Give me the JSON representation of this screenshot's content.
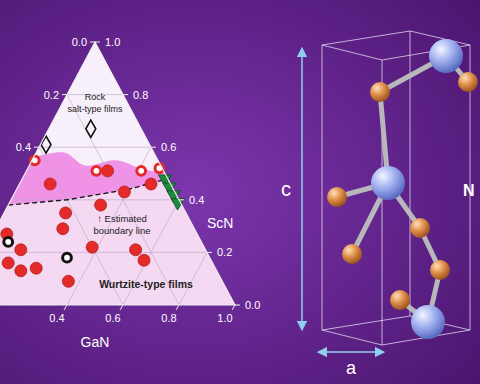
{
  "chart_data": {
    "type": "ternary",
    "grid": true,
    "axes": {
      "right": {
        "label": "ScN",
        "lim": [
          0,
          1
        ],
        "ticks": [
          {
            "value": 0,
            "label": "0.0"
          },
          0.2,
          0.4,
          0.6,
          0.8,
          {
            "value": 1,
            "label": "1.0"
          }
        ]
      },
      "bottom": {
        "label": "GaN",
        "lim": [
          0,
          1
        ],
        "ticks": [
          0.4,
          0.6,
          0.8,
          {
            "value": 1,
            "label": "1.0"
          }
        ]
      },
      "left": {
        "lim": [
          0,
          1
        ],
        "ticks": [
          {
            "value": 0,
            "label": "0.0"
          },
          0.2,
          0.4
        ]
      }
    },
    "series": [
      {
        "marker": "circle",
        "color": "#e52a2a",
        "scn": [
          0.46,
          0.51,
          0.43,
          0.46,
          0.35,
          0.38,
          0.29,
          0.22,
          0.21,
          0.17,
          0.27,
          0.16,
          0.21,
          0.13,
          0.14,
          0.09
        ],
        "gan": [
          0.11,
          0.29,
          0.39,
          0.47,
          0.22,
          0.33,
          0.24,
          0.38,
          0.54,
          0.59,
          0.05,
          0.11,
          0.13,
          0.17,
          0.22,
          0.36
        ]
      },
      {
        "marker": "ring",
        "color": "#e52a2a",
        "scn": [
          0.55,
          0.51,
          0.51,
          0.52
        ],
        "gan": [
          0.01,
          0.25,
          0.41,
          0.47
        ]
      },
      {
        "marker": "ring",
        "color": "#111111",
        "scn": [
          0.24,
          0.18
        ],
        "gan": [
          0.07,
          0.31
        ]
      },
      {
        "marker": "diamond",
        "color": "#111111",
        "scn": [
          0.61,
          0.67
        ],
        "gan": [
          0.02,
          0.15
        ]
      },
      {
        "marker": "triangle-down",
        "color": "#1e8a3c",
        "scn": [
          0.48,
          0.45,
          0.42,
          0.39
        ],
        "gan": [
          0.51,
          0.54,
          0.57,
          0.6
        ]
      }
    ],
    "boundary_line": {
      "line_style": "dashed",
      "gan": [
        0,
        0.2,
        0.4,
        0.52
      ],
      "scn": [
        0.38,
        0.4,
        0.44,
        0.48
      ]
    },
    "rock_salt_limit": {
      "gan": [
        0,
        0.1,
        0.2,
        0.3,
        0.4,
        0.5
      ],
      "scn": [
        0.56,
        0.58,
        0.53,
        0.55,
        0.52,
        0.5
      ]
    },
    "annotations": [
      {
        "lines": [
          "Rock",
          "salt-type films"
        ]
      },
      {
        "lines": [
          "↑ Estimated",
          "boundary line"
        ]
      },
      {
        "lines": [
          "Wurtzite-type films"
        ]
      }
    ]
  },
  "structure": {
    "height_label": "c",
    "width_label": "a",
    "atom_label": "N"
  }
}
